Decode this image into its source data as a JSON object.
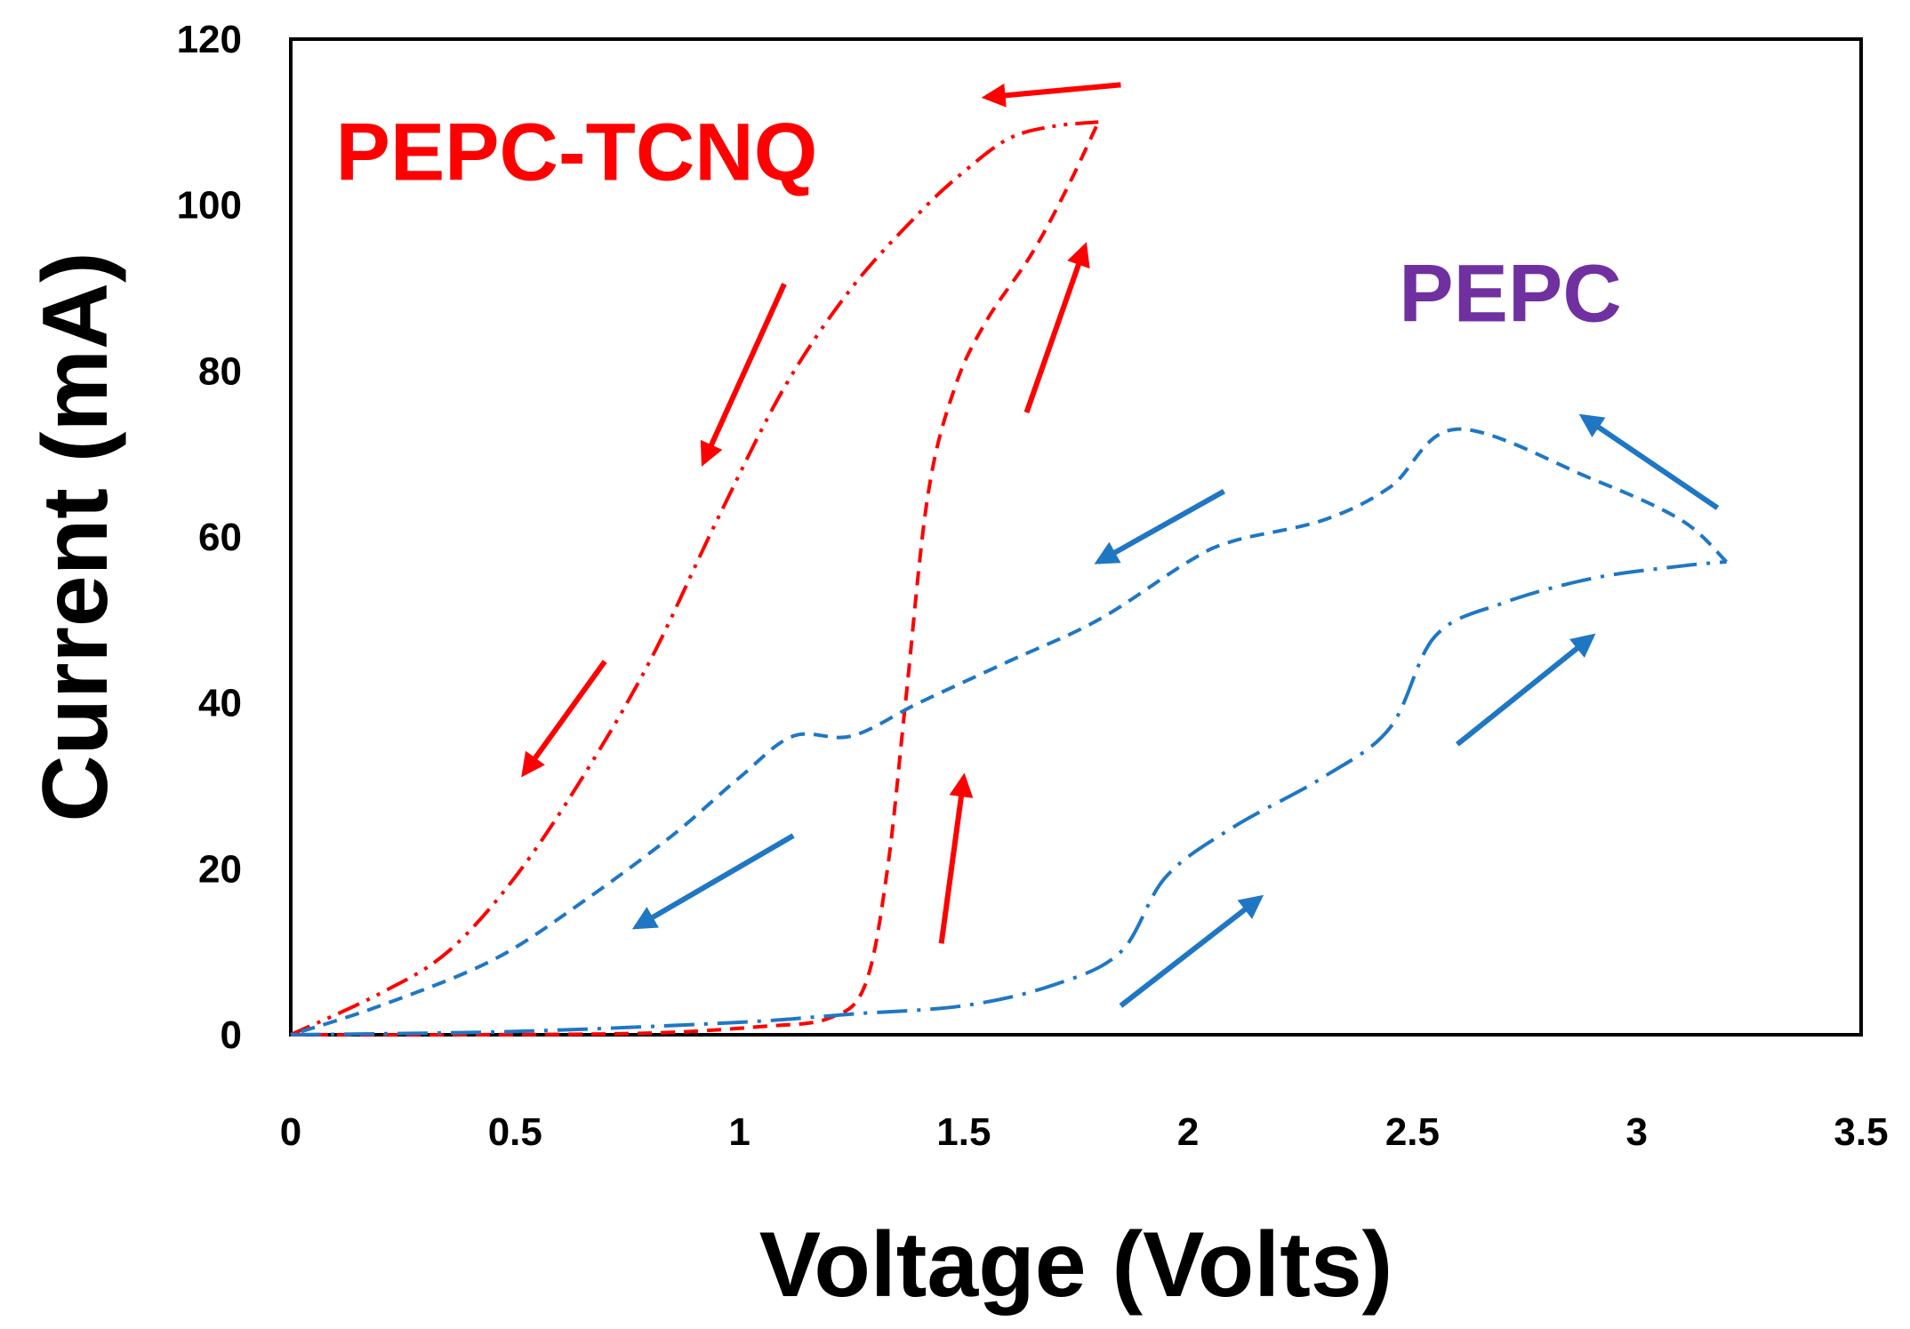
{
  "chart_data": {
    "type": "line",
    "title": "",
    "xlabel": "Voltage (Volts)",
    "ylabel": "Current (mA)",
    "xlim": [
      0,
      3.5
    ],
    "ylim": [
      0,
      120
    ],
    "xticks": [
      0,
      0.5,
      1,
      1.5,
      2,
      2.5,
      3,
      3.5
    ],
    "xtick_labels": [
      "0",
      "0.5",
      "1",
      "1.5",
      "2",
      "2.5",
      "3",
      "3.5"
    ],
    "yticks": [
      0,
      20,
      40,
      60,
      80,
      100,
      120
    ],
    "ytick_labels": [
      "0",
      "20",
      "40",
      "60",
      "80",
      "100",
      "120"
    ],
    "grid": false,
    "legend": "none",
    "series": [
      {
        "name": "PEPC-TCNQ forward",
        "color": "#ff0000",
        "dash": "dashed",
        "points": [
          [
            0,
            0
          ],
          [
            0.4,
            0
          ],
          [
            0.8,
            0.2
          ],
          [
            1.05,
            1
          ],
          [
            1.2,
            2
          ],
          [
            1.28,
            6
          ],
          [
            1.33,
            20
          ],
          [
            1.37,
            40
          ],
          [
            1.42,
            65
          ],
          [
            1.48,
            78
          ],
          [
            1.55,
            86
          ],
          [
            1.65,
            94
          ],
          [
            1.73,
            102
          ],
          [
            1.8,
            110
          ]
        ]
      },
      {
        "name": "PEPC-TCNQ reverse",
        "color": "#ff0000",
        "dash": "dash-dot-dot",
        "points": [
          [
            1.8,
            110
          ],
          [
            1.7,
            109.5
          ],
          [
            1.6,
            108
          ],
          [
            1.5,
            104
          ],
          [
            1.4,
            99
          ],
          [
            1.25,
            90
          ],
          [
            1.1,
            78
          ],
          [
            0.95,
            62
          ],
          [
            0.8,
            45
          ],
          [
            0.65,
            31
          ],
          [
            0.5,
            19
          ],
          [
            0.35,
            10
          ],
          [
            0.2,
            5
          ],
          [
            0,
            0
          ]
        ]
      },
      {
        "name": "PEPC forward",
        "color": "#1f77c4",
        "dash": "dash-dot",
        "points": [
          [
            0,
            0
          ],
          [
            0.5,
            0.4
          ],
          [
            1,
            1.5
          ],
          [
            1.25,
            2.5
          ],
          [
            1.5,
            3.5
          ],
          [
            1.7,
            6
          ],
          [
            1.85,
            10
          ],
          [
            1.95,
            19
          ],
          [
            2.1,
            25
          ],
          [
            2.3,
            31
          ],
          [
            2.45,
            37
          ],
          [
            2.55,
            48
          ],
          [
            2.7,
            52
          ],
          [
            2.9,
            55
          ],
          [
            3.1,
            56.5
          ],
          [
            3.2,
            57
          ]
        ]
      },
      {
        "name": "PEPC reverse",
        "color": "#1f77c4",
        "dash": "dashed",
        "points": [
          [
            3.2,
            57
          ],
          [
            3.1,
            62
          ],
          [
            2.9,
            67
          ],
          [
            2.6,
            73
          ],
          [
            2.45,
            66
          ],
          [
            2.3,
            62
          ],
          [
            2.1,
            59.5
          ],
          [
            2,
            57
          ],
          [
            1.8,
            50
          ],
          [
            1.6,
            45
          ],
          [
            1.4,
            40
          ],
          [
            1.25,
            36
          ],
          [
            1.12,
            36
          ],
          [
            1.0,
            31
          ],
          [
            0.85,
            24
          ],
          [
            0.65,
            16
          ],
          [
            0.45,
            9
          ],
          [
            0.2,
            3.5
          ],
          [
            0,
            0
          ]
        ]
      }
    ],
    "annotations": [
      {
        "text": "PEPC-TCNQ",
        "color": "#ff0000",
        "x": 0.1,
        "y": 103
      },
      {
        "text": "PEPC",
        "color": "#7030a0",
        "x": 2.47,
        "y": 86
      }
    ],
    "arrows": [
      {
        "series": "PEPC-TCNQ reverse",
        "color": "#ff0000",
        "from": [
          1.85,
          114.5
        ],
        "to": [
          1.55,
          113
        ]
      },
      {
        "series": "PEPC-TCNQ reverse",
        "color": "#ff0000",
        "from": [
          1.1,
          90.5
        ],
        "to": [
          0.92,
          69
        ]
      },
      {
        "series": "PEPC-TCNQ reverse",
        "color": "#ff0000",
        "from": [
          0.7,
          45
        ],
        "to": [
          0.52,
          31.5
        ]
      },
      {
        "series": "PEPC-TCNQ forward",
        "color": "#ff0000",
        "from": [
          1.64,
          75
        ],
        "to": [
          1.77,
          95
        ]
      },
      {
        "series": "PEPC-TCNQ forward",
        "color": "#ff0000",
        "from": [
          1.45,
          11
        ],
        "to": [
          1.5,
          31
        ]
      },
      {
        "series": "PEPC reverse",
        "color": "#1f77c4",
        "from": [
          2.08,
          65.5
        ],
        "to": [
          1.8,
          57
        ]
      },
      {
        "series": "PEPC reverse",
        "color": "#1f77c4",
        "from": [
          1.12,
          24
        ],
        "to": [
          0.77,
          13
        ]
      },
      {
        "series": "PEPC reverse",
        "color": "#1f77c4",
        "from": [
          3.18,
          63.5
        ],
        "to": [
          2.88,
          74.5
        ]
      },
      {
        "series": "PEPC forward",
        "color": "#1f77c4",
        "from": [
          1.85,
          3.5
        ],
        "to": [
          2.16,
          16.5
        ]
      },
      {
        "series": "PEPC forward",
        "color": "#1f77c4",
        "from": [
          2.6,
          35
        ],
        "to": [
          2.9,
          48
        ]
      }
    ]
  }
}
